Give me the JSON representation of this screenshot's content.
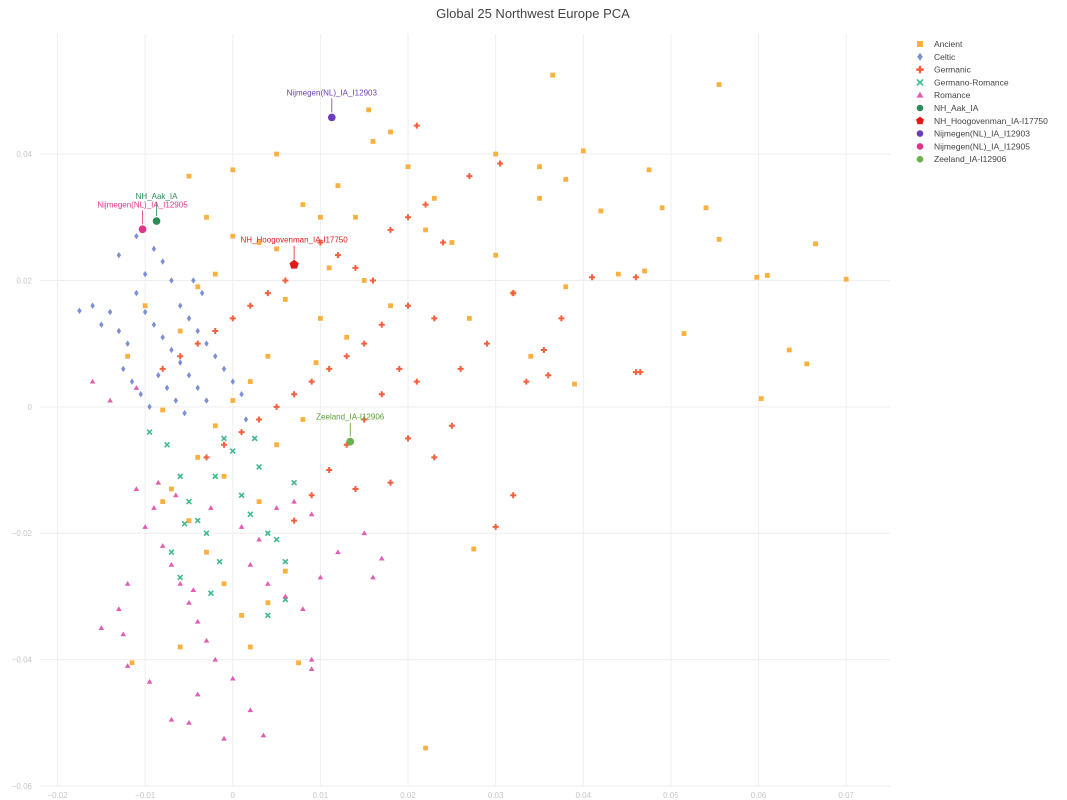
{
  "chart_data": {
    "type": "scatter",
    "title": "Global 25 Northwest Europe PCA",
    "xlabel": "",
    "ylabel": "",
    "xlim": [
      -0.022,
      0.075
    ],
    "ylim": [
      -0.06,
      0.059
    ],
    "x_ticks": [
      -0.02,
      -0.01,
      0,
      0.01,
      0.02,
      0.03,
      0.04,
      0.05,
      0.06,
      0.07
    ],
    "x_tick_labels": [
      "−0.02",
      "−0.01",
      "0",
      "0.01",
      "0.02",
      "0.03",
      "0.04",
      "0.05",
      "0.06",
      "0.07"
    ],
    "y_ticks": [
      0.04,
      0.02,
      0,
      -0.02,
      -0.04,
      -0.06
    ],
    "y_tick_labels": [
      "0.04",
      "0.02",
      "0",
      "−0.02",
      "−0.04",
      "−0.06"
    ],
    "grid": true,
    "legend_position": "top-right",
    "series": [
      {
        "name": "Ancient",
        "symbol": "square",
        "color": "#fbb040",
        "points": [
          [
            0.0365,
            0.0525
          ],
          [
            0.0555,
            0.051
          ],
          [
            0.0155,
            0.047
          ],
          [
            0.018,
            0.0435
          ],
          [
            0.03,
            0.04
          ],
          [
            0.035,
            0.038
          ],
          [
            0.04,
            0.0405
          ],
          [
            0.0475,
            0.0375
          ],
          [
            0.049,
            0.0315
          ],
          [
            0.054,
            0.0315
          ],
          [
            0.0555,
            0.0265
          ],
          [
            0.0665,
            0.0258
          ],
          [
            0.07,
            0.0202
          ],
          [
            0.0598,
            0.0205
          ],
          [
            0.061,
            0.0208
          ],
          [
            0.0515,
            0.0116
          ],
          [
            0.0635,
            0.009
          ],
          [
            0.0655,
            0.0068
          ],
          [
            0.0603,
            0.0013
          ],
          [
            0.039,
            0.0036
          ],
          [
            0.022,
            -0.054
          ],
          [
            0.0275,
            -0.0225
          ],
          [
            -0.0115,
            -0.0405
          ],
          [
            0.0075,
            -0.0405
          ],
          [
            0.038,
            0.019
          ],
          [
            0.047,
            0.0215
          ],
          [
            0.03,
            0.024
          ],
          [
            0.025,
            0.026
          ],
          [
            0.01,
            0.03
          ],
          [
            0.005,
            0.025
          ],
          [
            0.003,
            0.026
          ],
          [
            0.0,
            0.027
          ],
          [
            0.012,
            0.035
          ],
          [
            0.02,
            0.038
          ],
          [
            0.005,
            0.04
          ],
          [
            0.0,
            0.0375
          ],
          [
            -0.005,
            0.0365
          ],
          [
            -0.003,
            0.03
          ],
          [
            0.006,
            0.017
          ],
          [
            0.01,
            0.014
          ],
          [
            0.013,
            0.011
          ],
          [
            0.004,
            0.008
          ],
          [
            0.002,
            0.004
          ],
          [
            0.0,
            0.001
          ],
          [
            -0.002,
            -0.003
          ],
          [
            -0.004,
            -0.008
          ],
          [
            -0.007,
            -0.013
          ],
          [
            -0.005,
            -0.018
          ],
          [
            -0.003,
            -0.023
          ],
          [
            -0.001,
            -0.028
          ],
          [
            0.001,
            -0.033
          ],
          [
            0.002,
            -0.038
          ],
          [
            -0.008,
            -0.015
          ],
          [
            0.003,
            -0.015
          ],
          [
            0.005,
            -0.006
          ],
          [
            0.008,
            -0.002
          ],
          [
            -0.006,
            0.012
          ],
          [
            -0.004,
            0.019
          ],
          [
            0.015,
            0.02
          ],
          [
            0.018,
            0.016
          ],
          [
            0.022,
            0.028
          ],
          [
            0.032,
            0.018
          ],
          [
            0.034,
            0.008
          ],
          [
            0.027,
            0.014
          ],
          [
            0.042,
            0.031
          ],
          [
            0.044,
            0.021
          ],
          [
            0.016,
            0.042
          ],
          [
            0.008,
            0.032
          ],
          [
            0.011,
            0.022
          ],
          [
            0.014,
            0.03
          ],
          [
            0.023,
            0.033
          ],
          [
            0.035,
            0.033
          ],
          [
            0.038,
            0.036
          ],
          [
            0.0095,
            0.007
          ],
          [
            -0.002,
            0.021
          ],
          [
            -0.01,
            0.016
          ],
          [
            -0.012,
            0.008
          ],
          [
            -0.008,
            -0.0005
          ],
          [
            -0.001,
            -0.011
          ],
          [
            0.006,
            -0.026
          ],
          [
            0.004,
            -0.031
          ],
          [
            -0.006,
            -0.038
          ]
        ]
      },
      {
        "name": "Celtic",
        "symbol": "diamond",
        "color": "#7b8fd4",
        "points": [
          [
            -0.0175,
            0.0152
          ],
          [
            -0.016,
            0.016
          ],
          [
            -0.015,
            0.013
          ],
          [
            -0.014,
            0.015
          ],
          [
            -0.013,
            0.012
          ],
          [
            -0.012,
            0.01
          ],
          [
            -0.013,
            0.024
          ],
          [
            -0.011,
            0.027
          ],
          [
            -0.01,
            0.021
          ],
          [
            -0.009,
            0.025
          ],
          [
            -0.008,
            0.023
          ],
          [
            -0.007,
            0.02
          ],
          [
            -0.011,
            0.018
          ],
          [
            -0.01,
            0.015
          ],
          [
            -0.009,
            0.013
          ],
          [
            -0.008,
            0.011
          ],
          [
            -0.007,
            0.009
          ],
          [
            -0.006,
            0.007
          ],
          [
            -0.005,
            0.005
          ],
          [
            -0.004,
            0.003
          ],
          [
            -0.003,
            0.001
          ],
          [
            -0.006,
            0.016
          ],
          [
            -0.005,
            0.014
          ],
          [
            -0.004,
            0.012
          ],
          [
            -0.003,
            0.01
          ],
          [
            -0.002,
            0.008
          ],
          [
            -0.001,
            0.006
          ],
          [
            0.0,
            0.004
          ],
          [
            0.001,
            0.002
          ],
          [
            -0.0085,
            0.005
          ],
          [
            -0.0075,
            0.003
          ],
          [
            -0.0065,
            0.001
          ],
          [
            -0.0055,
            -0.001
          ],
          [
            -0.0125,
            0.006
          ],
          [
            -0.0115,
            0.004
          ],
          [
            -0.0105,
            0.002
          ],
          [
            -0.0095,
            0.0
          ],
          [
            0.0015,
            -0.002
          ],
          [
            -0.0035,
            0.018
          ],
          [
            -0.0045,
            0.02
          ]
        ]
      },
      {
        "name": "Germanic",
        "symbol": "cross",
        "color": "#f4603e",
        "points": [
          [
            0.021,
            0.0445
          ],
          [
            0.027,
            0.0365
          ],
          [
            0.0305,
            0.0385
          ],
          [
            0.041,
            0.0205
          ],
          [
            0.046,
            0.0205
          ],
          [
            0.046,
            0.0055
          ],
          [
            0.0465,
            0.0055
          ],
          [
            0.0375,
            0.014
          ],
          [
            0.0355,
            0.009
          ],
          [
            0.032,
            0.018
          ],
          [
            0.029,
            0.01
          ],
          [
            0.026,
            0.006
          ],
          [
            0.025,
            -0.003
          ],
          [
            0.023,
            -0.008
          ],
          [
            0.03,
            -0.019
          ],
          [
            0.032,
            -0.014
          ],
          [
            0.023,
            0.014
          ],
          [
            0.02,
            0.016
          ],
          [
            0.017,
            0.013
          ],
          [
            0.015,
            0.01
          ],
          [
            0.013,
            0.008
          ],
          [
            0.011,
            0.006
          ],
          [
            0.009,
            0.004
          ],
          [
            0.007,
            0.002
          ],
          [
            0.005,
            0.0
          ],
          [
            0.003,
            -0.002
          ],
          [
            0.001,
            -0.004
          ],
          [
            -0.001,
            -0.006
          ],
          [
            -0.003,
            -0.008
          ],
          [
            0.006,
            0.02
          ],
          [
            0.004,
            0.018
          ],
          [
            0.002,
            0.016
          ],
          [
            0.0,
            0.014
          ],
          [
            -0.002,
            0.012
          ],
          [
            -0.004,
            0.01
          ],
          [
            -0.006,
            0.008
          ],
          [
            -0.008,
            0.006
          ],
          [
            0.01,
            0.026
          ],
          [
            0.012,
            0.024
          ],
          [
            0.014,
            0.022
          ],
          [
            0.016,
            0.02
          ],
          [
            0.018,
            0.028
          ],
          [
            0.02,
            0.03
          ],
          [
            0.022,
            0.032
          ],
          [
            0.024,
            0.026
          ],
          [
            0.019,
            0.006
          ],
          [
            0.021,
            0.004
          ],
          [
            0.017,
            0.002
          ],
          [
            0.015,
            -0.002
          ],
          [
            0.013,
            -0.006
          ],
          [
            0.011,
            -0.01
          ],
          [
            0.009,
            -0.014
          ],
          [
            0.007,
            -0.018
          ],
          [
            0.014,
            -0.013
          ],
          [
            0.018,
            -0.012
          ],
          [
            0.02,
            -0.005
          ],
          [
            0.036,
            0.005
          ],
          [
            0.0335,
            0.004
          ]
        ]
      },
      {
        "name": "Germano-Romance",
        "symbol": "x",
        "color": "#3fb98f",
        "points": [
          [
            -0.0095,
            -0.004
          ],
          [
            -0.0075,
            -0.006
          ],
          [
            -0.006,
            -0.011
          ],
          [
            -0.005,
            -0.015
          ],
          [
            -0.004,
            -0.018
          ],
          [
            -0.003,
            -0.02
          ],
          [
            -0.007,
            -0.023
          ],
          [
            -0.006,
            -0.027
          ],
          [
            -0.002,
            -0.011
          ],
          [
            -0.001,
            -0.005
          ],
          [
            0.0,
            -0.007
          ],
          [
            0.001,
            -0.014
          ],
          [
            0.002,
            -0.017
          ],
          [
            0.003,
            -0.0095
          ],
          [
            0.004,
            -0.02
          ],
          [
            0.005,
            -0.021
          ],
          [
            0.006,
            -0.0245
          ],
          [
            0.007,
            -0.012
          ],
          [
            -0.0015,
            -0.0245
          ],
          [
            -0.0025,
            -0.0295
          ],
          [
            0.004,
            -0.033
          ],
          [
            0.006,
            -0.0305
          ],
          [
            -0.0055,
            -0.0185
          ],
          [
            0.0025,
            -0.005
          ]
        ]
      },
      {
        "name": "Romance",
        "symbol": "triangle-up",
        "color": "#e25cb4",
        "points": [
          [
            -0.016,
            0.004
          ],
          [
            -0.014,
            0.001
          ],
          [
            -0.011,
            0.003
          ],
          [
            -0.015,
            -0.035
          ],
          [
            -0.0125,
            -0.036
          ],
          [
            -0.012,
            -0.041
          ],
          [
            -0.0095,
            -0.0435
          ],
          [
            -0.007,
            -0.0495
          ],
          [
            -0.005,
            -0.05
          ],
          [
            -0.004,
            -0.0455
          ],
          [
            -0.001,
            -0.0525
          ],
          [
            0.002,
            -0.048
          ],
          [
            0.0035,
            -0.052
          ],
          [
            0.009,
            -0.04
          ],
          [
            0.009,
            -0.0415
          ],
          [
            -0.011,
            -0.013
          ],
          [
            -0.009,
            -0.016
          ],
          [
            -0.01,
            -0.019
          ],
          [
            -0.008,
            -0.022
          ],
          [
            -0.007,
            -0.025
          ],
          [
            -0.006,
            -0.028
          ],
          [
            -0.005,
            -0.031
          ],
          [
            -0.004,
            -0.034
          ],
          [
            -0.003,
            -0.037
          ],
          [
            -0.002,
            -0.04
          ],
          [
            0.0,
            -0.043
          ],
          [
            0.002,
            -0.025
          ],
          [
            0.004,
            -0.028
          ],
          [
            0.006,
            -0.03
          ],
          [
            0.008,
            -0.032
          ],
          [
            0.01,
            -0.027
          ],
          [
            0.012,
            -0.023
          ],
          [
            0.015,
            -0.02
          ],
          [
            0.016,
            -0.027
          ],
          [
            0.017,
            -0.024
          ],
          [
            -0.012,
            -0.028
          ],
          [
            -0.013,
            -0.032
          ],
          [
            -0.0085,
            -0.012
          ],
          [
            -0.0065,
            -0.014
          ],
          [
            0.001,
            -0.019
          ],
          [
            0.003,
            -0.021
          ],
          [
            0.005,
            -0.016
          ],
          [
            0.007,
            -0.015
          ],
          [
            0.009,
            -0.017
          ],
          [
            -0.0025,
            -0.016
          ],
          [
            -0.0045,
            -0.029
          ]
        ]
      },
      {
        "name": "NH_Aak_IA",
        "symbol": "circle",
        "color": "#2e8b57",
        "size": 7,
        "label": "NH_Aak_IA",
        "label_color": "#2e8b57",
        "points": [
          [
            -0.0087,
            0.0294
          ]
        ]
      },
      {
        "name": "NH_Hoogovenman_IA-I17750",
        "symbol": "pentagon",
        "color": "#e31a1c",
        "size": 7,
        "label": "NH_Hoogovenman_IA-I17750",
        "label_color": "#e31a1c",
        "points": [
          [
            0.007,
            0.0225
          ]
        ]
      },
      {
        "name": "Nijmegen(NL)_IA_I12903",
        "symbol": "circle",
        "color": "#6a3dbf",
        "size": 7,
        "label": "Nijmegen(NL)_IA_I12903",
        "label_color": "#6a3dbf",
        "points": [
          [
            0.0113,
            0.0458
          ]
        ]
      },
      {
        "name": "Nijmegen(NL)_IA_I12905",
        "symbol": "circle",
        "color": "#e0348a",
        "size": 7,
        "label": "Nijmegen(NL)_IA_I12905",
        "label_color": "#e0348a",
        "points": [
          [
            -0.0103,
            0.0281
          ]
        ]
      },
      {
        "name": "Zeeland_IA-I12906",
        "symbol": "circle",
        "color": "#6ab04c",
        "size": 7,
        "label": "Zeeland_IA-I12906",
        "label_color": "#5aa02c",
        "points": [
          [
            0.0134,
            -0.0055
          ]
        ]
      }
    ]
  }
}
